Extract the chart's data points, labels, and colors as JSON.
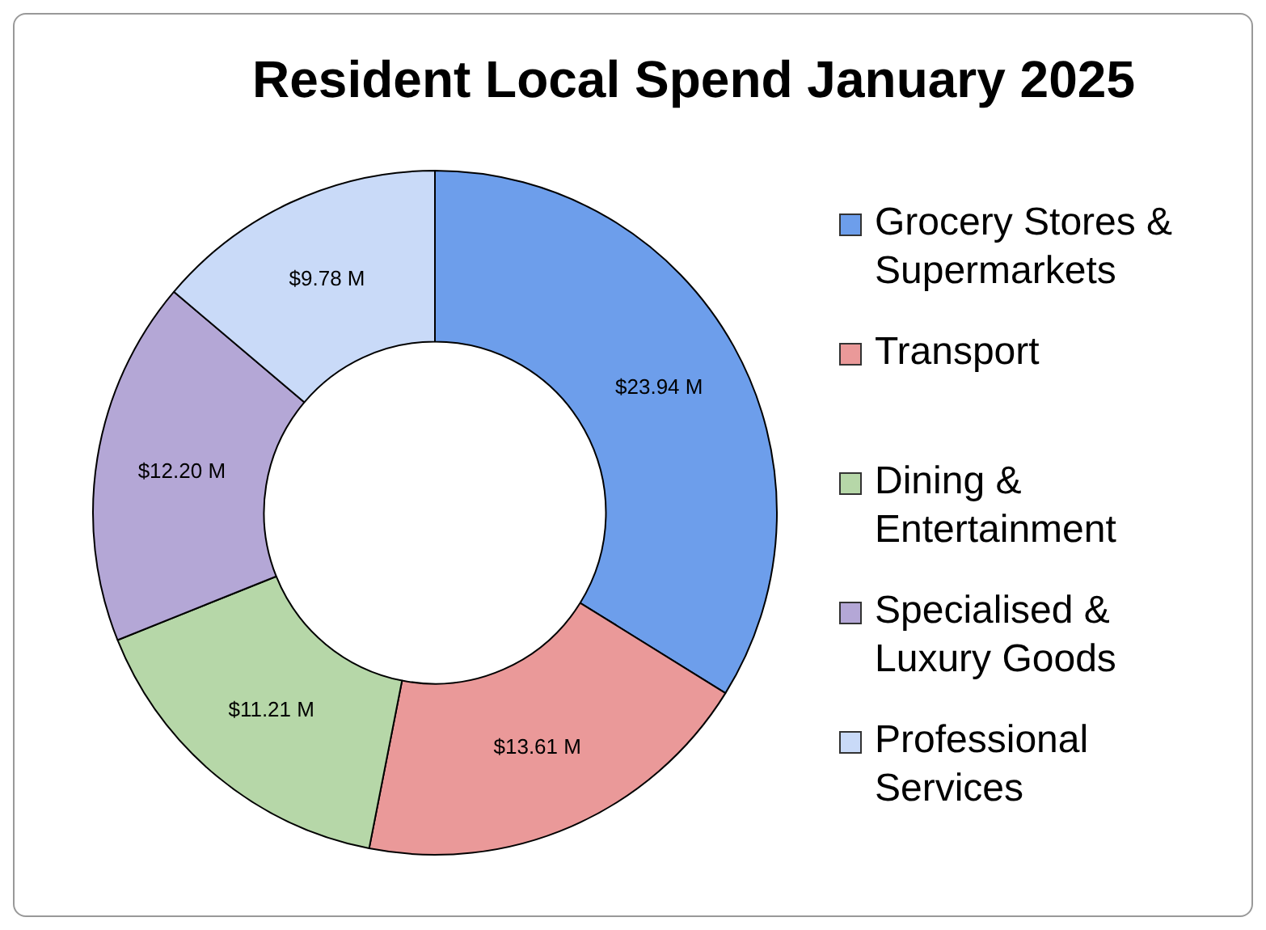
{
  "chart_data": {
    "type": "donut",
    "title": "Resident Local Spend January 2025",
    "categories": [
      "Grocery Stores & Supermarkets",
      "Transport",
      "Dining & Entertainment",
      "Specialised & Luxury Goods",
      "Professional Services"
    ],
    "values": [
      23.94,
      13.61,
      11.21,
      12.2,
      9.78
    ],
    "colors": [
      "#6d9eeb",
      "#ea9999",
      "#b6d7a8",
      "#b4a7d6",
      "#c9daf8"
    ],
    "value_labels": [
      "$23.94 M",
      "$13.61 M",
      "$11.21 M",
      "$12.20 M",
      "$9.78 M"
    ],
    "legend": "right"
  }
}
